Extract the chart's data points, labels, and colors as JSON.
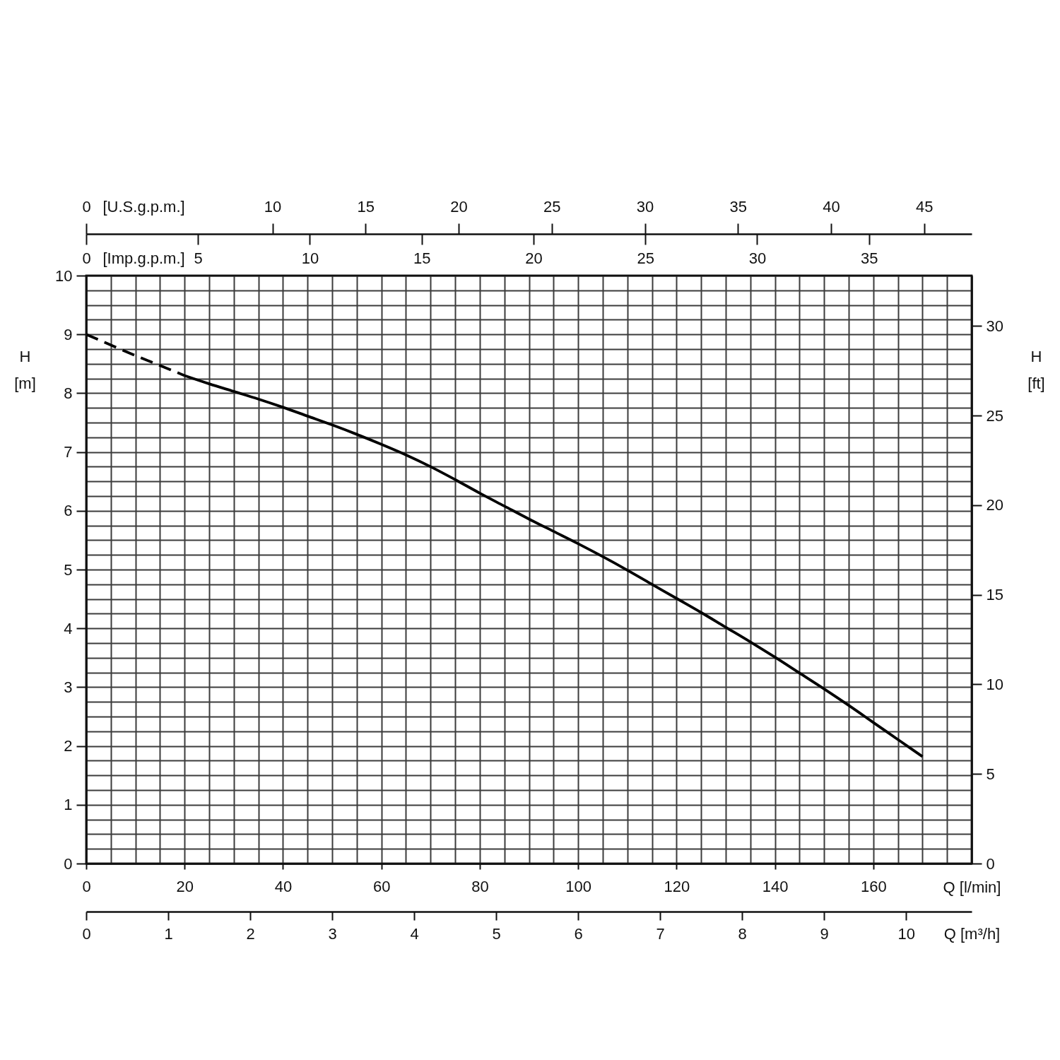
{
  "chart_data": [
    {
      "type": "line",
      "xlabel": "Q [l/min]",
      "ylabel": "H [m]",
      "x2label": "[U.S.g.p.m.]",
      "xlim": [
        0,
        180
      ],
      "xticks": [
        0,
        {
          "value": 5,
          "label": null
        },
        {
          "value": 10,
          "label": null
        },
        {
          "value": 15,
          "label": null
        },
        20,
        {
          "value": 25,
          "label": null
        },
        {
          "value": 30,
          "label": null
        },
        {
          "value": 35,
          "label": null
        },
        40,
        {
          "value": 45,
          "label": null
        },
        {
          "value": 50,
          "label": null
        },
        {
          "value": 55,
          "label": null
        },
        60,
        {
          "value": 65,
          "label": null
        },
        {
          "value": 70,
          "label": null
        },
        {
          "value": 75,
          "label": null
        },
        80,
        {
          "value": 85,
          "label": null
        },
        {
          "value": 90,
          "label": null
        },
        {
          "value": 95,
          "label": null
        },
        100,
        {
          "value": 105,
          "label": null
        },
        {
          "value": 110,
          "label": null
        },
        {
          "value": 115,
          "label": null
        },
        120,
        {
          "value": 125,
          "label": null
        },
        {
          "value": 130,
          "label": null
        },
        {
          "value": 135,
          "label": null
        },
        140,
        {
          "value": 145,
          "label": null
        },
        {
          "value": 150,
          "label": null
        },
        {
          "value": 155,
          "label": null
        },
        160,
        {
          "value": 165,
          "label": null
        },
        {
          "value": 170,
          "label": null
        },
        {
          "value": 175,
          "label": null
        },
        {
          "value": 180,
          "label": null
        }
      ],
      "x2lim": [
        0,
        47.55
      ],
      "x2ticks": [
        0,
        10,
        15,
        20,
        25,
        30,
        35,
        40,
        45
      ],
      "ylim": [
        0,
        10
      ],
      "yticks": [
        0,
        {
          "value": 0.25,
          "label": null
        },
        {
          "value": 0.5,
          "label": null
        },
        {
          "value": 0.75,
          "label": null
        },
        1,
        {
          "value": 1.25,
          "label": null
        },
        {
          "value": 1.5,
          "label": null
        },
        {
          "value": 1.75,
          "label": null
        },
        2,
        {
          "value": 2.25,
          "label": null
        },
        {
          "value": 2.5,
          "label": null
        },
        {
          "value": 2.75,
          "label": null
        },
        3,
        {
          "value": 3.25,
          "label": null
        },
        {
          "value": 3.5,
          "label": null
        },
        {
          "value": 3.75,
          "label": null
        },
        4,
        {
          "value": 4.25,
          "label": null
        },
        {
          "value": 4.5,
          "label": null
        },
        {
          "value": 4.75,
          "label": null
        },
        5,
        {
          "value": 5.25,
          "label": null
        },
        {
          "value": 5.5,
          "label": null
        },
        {
          "value": 5.75,
          "label": null
        },
        6,
        {
          "value": 6.25,
          "label": null
        },
        {
          "value": 6.5,
          "label": null
        },
        {
          "value": 6.75,
          "label": null
        },
        7,
        {
          "value": 7.25,
          "label": null
        },
        {
          "value": 7.5,
          "label": null
        },
        {
          "value": 7.75,
          "label": null
        },
        8,
        {
          "value": 8.25,
          "label": null
        },
        {
          "value": 8.5,
          "label": null
        },
        {
          "value": 8.75,
          "label": null
        },
        9,
        {
          "value": 9.25,
          "label": null
        },
        {
          "value": 9.5,
          "label": null
        },
        {
          "value": 9.75,
          "label": null
        },
        10
      ],
      "grid": true,
      "series": [
        {
          "color": "#000000",
          "line_style": "dashed",
          "x": [
            0,
            5,
            10,
            15,
            20
          ],
          "values": [
            9.0,
            8.82,
            8.64,
            8.47,
            8.3
          ]
        },
        {
          "color": "#000000",
          "line_style": "solid",
          "x": [
            20,
            25,
            30,
            35,
            40,
            45,
            50,
            55,
            60,
            65,
            70,
            75,
            80,
            85,
            90,
            95,
            100,
            105,
            110,
            115,
            120,
            125,
            130,
            135,
            140,
            145,
            150,
            155,
            160,
            165,
            170
          ],
          "values": [
            8.3,
            8.16,
            8.03,
            7.9,
            7.76,
            7.61,
            7.46,
            7.3,
            7.13,
            6.95,
            6.75,
            6.53,
            6.3,
            6.08,
            5.86,
            5.65,
            5.44,
            5.22,
            4.99,
            4.75,
            4.51,
            4.27,
            4.02,
            3.77,
            3.51,
            3.24,
            2.97,
            2.69,
            2.4,
            2.11,
            1.82
          ]
        }
      ]
    },
    {
      "type": "line",
      "xlabel": "Q [m³/h]",
      "ylabel": "H [ft]",
      "x2label": "[Imp.g.p.m.]",
      "xlim": [
        0,
        10.8
      ],
      "xticks": [
        0,
        1,
        2,
        3,
        4,
        5,
        6,
        7,
        8,
        9,
        10
      ],
      "x2lim": [
        0,
        39.59
      ],
      "x2ticks": [
        0,
        5,
        10,
        15,
        20,
        25,
        30,
        35
      ],
      "ylim": [
        0,
        32.81
      ],
      "yticks": [
        0,
        5,
        10,
        15,
        20,
        25,
        30
      ]
    }
  ]
}
